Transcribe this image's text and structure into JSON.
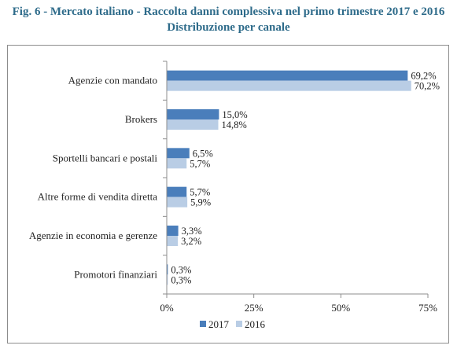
{
  "chart_data": {
    "type": "bar",
    "orientation": "horizontal",
    "title": "Fig. 6 - Mercato italiano - Raccolta danni complessiva nel primo trimestre 2017 e 2016",
    "subtitle": "Distribuzione per canale",
    "categories": [
      "Agenzie con mandato",
      "Brokers",
      "Sportelli bancari e postali",
      "Altre forme di vendita diretta",
      "Agenzie in economia e gerenze",
      "Promotori finanziari"
    ],
    "series": [
      {
        "name": "2017",
        "color": "#4a7ebb",
        "values": [
          69.2,
          15.0,
          6.5,
          5.7,
          3.3,
          0.3
        ],
        "labels": [
          "69,2%",
          "15,0%",
          "6,5%",
          "5,7%",
          "3,3%",
          "0,3%"
        ]
      },
      {
        "name": "2016",
        "color": "#b9cde5",
        "values": [
          70.2,
          14.8,
          5.7,
          5.9,
          3.2,
          0.3
        ],
        "labels": [
          "70,2%",
          "14,8%",
          "5,7%",
          "5,9%",
          "3,2%",
          "0,3%"
        ]
      }
    ],
    "xlim": [
      0,
      75
    ],
    "xticks": [
      0,
      25,
      50,
      75
    ],
    "xtick_labels": [
      "0%",
      "25%",
      "50%",
      "75%"
    ],
    "legend_position": "bottom",
    "grid": false
  }
}
